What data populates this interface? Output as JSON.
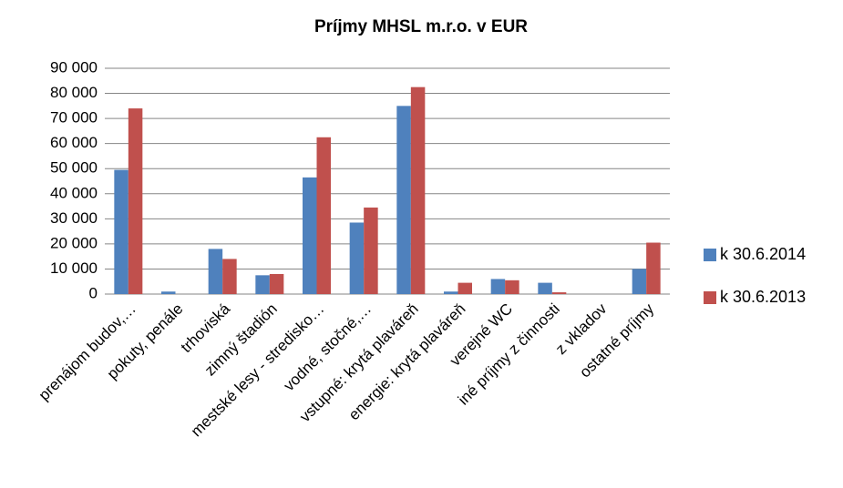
{
  "chart_data": {
    "type": "bar",
    "title": "Príjmy MHSL m.r.o. v EUR",
    "categories": [
      "prenájom budov,…",
      "pokuty, penále",
      "trhoviská",
      "zimný štadión",
      "mestské lesy - stredisko…",
      "vodné, stočné,…",
      "vstupné: krytá plaváreň",
      "energie: krytá plaváreň",
      "verejné WC",
      "iné príjmy z činnosti",
      "z vkladov",
      "ostatné príjmy"
    ],
    "series": [
      {
        "name": "k 30.6.2014",
        "color": "#4f81bd",
        "values": [
          49500,
          1000,
          18000,
          7500,
          46500,
          28500,
          75000,
          1000,
          6000,
          4500,
          0,
          10000
        ]
      },
      {
        "name": "k 30.6.2013",
        "color": "#c0504d",
        "values": [
          74000,
          0,
          14000,
          8000,
          62500,
          34500,
          82500,
          4500,
          5500,
          700,
          0,
          20500
        ]
      }
    ],
    "ylim": [
      0,
      90000
    ],
    "yticks": [
      0,
      {
        "value": 10000,
        "label": "10 000"
      },
      {
        "value": 20000,
        "label": "20 000"
      },
      {
        "value": 30000,
        "label": "30 000"
      },
      {
        "value": 40000,
        "label": "40 000"
      },
      {
        "value": 50000,
        "label": "50 000"
      },
      {
        "value": 60000,
        "label": "60 000"
      },
      {
        "value": 70000,
        "label": "70 000"
      },
      {
        "value": 80000,
        "label": "80 000"
      },
      {
        "value": 90000,
        "label": "90 000"
      }
    ],
    "grid": true,
    "legend": "right"
  }
}
